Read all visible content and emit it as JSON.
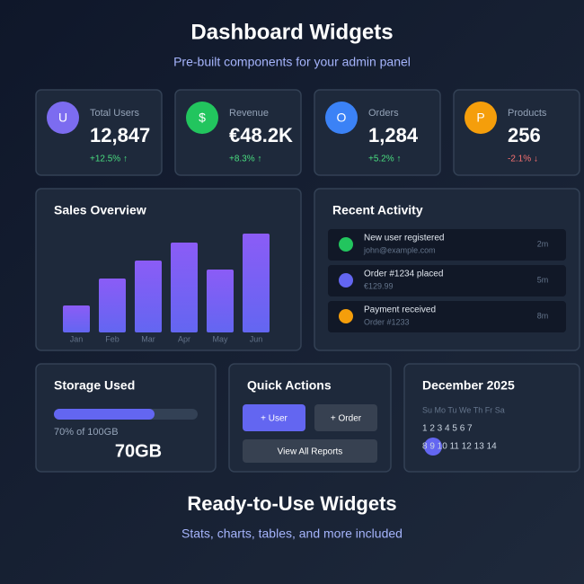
{
  "header": {
    "title": "Dashboard Widgets",
    "subtitle": "Pre-built components for your admin panel"
  },
  "stats": [
    {
      "icon": "U",
      "label": "Total Users",
      "value": "12,847",
      "change": "+12.5% ↑"
    },
    {
      "icon": "$",
      "label": "Revenue",
      "value": "€48.2K",
      "change": "+8.3% ↑"
    },
    {
      "icon": "O",
      "label": "Orders",
      "value": "1,284",
      "change": "+5.2% ↑"
    },
    {
      "icon": "P",
      "label": "Products",
      "value": "256",
      "change": "-2.1% ↓"
    }
  ],
  "sales": {
    "title": "Sales Overview",
    "months": [
      "Jan",
      "Feb",
      "Mar",
      "Apr",
      "May",
      "Jun"
    ],
    "values": [
      30,
      60,
      80,
      100,
      70,
      110
    ]
  },
  "activity": {
    "title": "Recent Activity",
    "items": [
      {
        "title": "New user registered",
        "detail": "john@example.com",
        "time": "2m"
      },
      {
        "title": "Order #1234 placed",
        "detail": "€129.99",
        "time": "5m"
      },
      {
        "title": "Payment received",
        "detail": "Order #1233",
        "time": "8m"
      }
    ]
  },
  "storage": {
    "title": "Storage Used",
    "percent": 70,
    "label": "70% of 100GB",
    "value": "70GB"
  },
  "quick_actions": {
    "title": "Quick Actions",
    "buttons": [
      "+ User",
      "+ Order",
      "View All Reports"
    ]
  },
  "calendar": {
    "title": "December 2025",
    "weekdays": "Su Mo Tu We Th Fr Sa",
    "weeks": [
      "1 2 3 4 5 6 7",
      "8 9 10 11 12 13 14"
    ]
  },
  "footer": {
    "title": "Ready-to-Use Widgets",
    "subtitle": "Stats, charts, tables, and more included"
  }
}
